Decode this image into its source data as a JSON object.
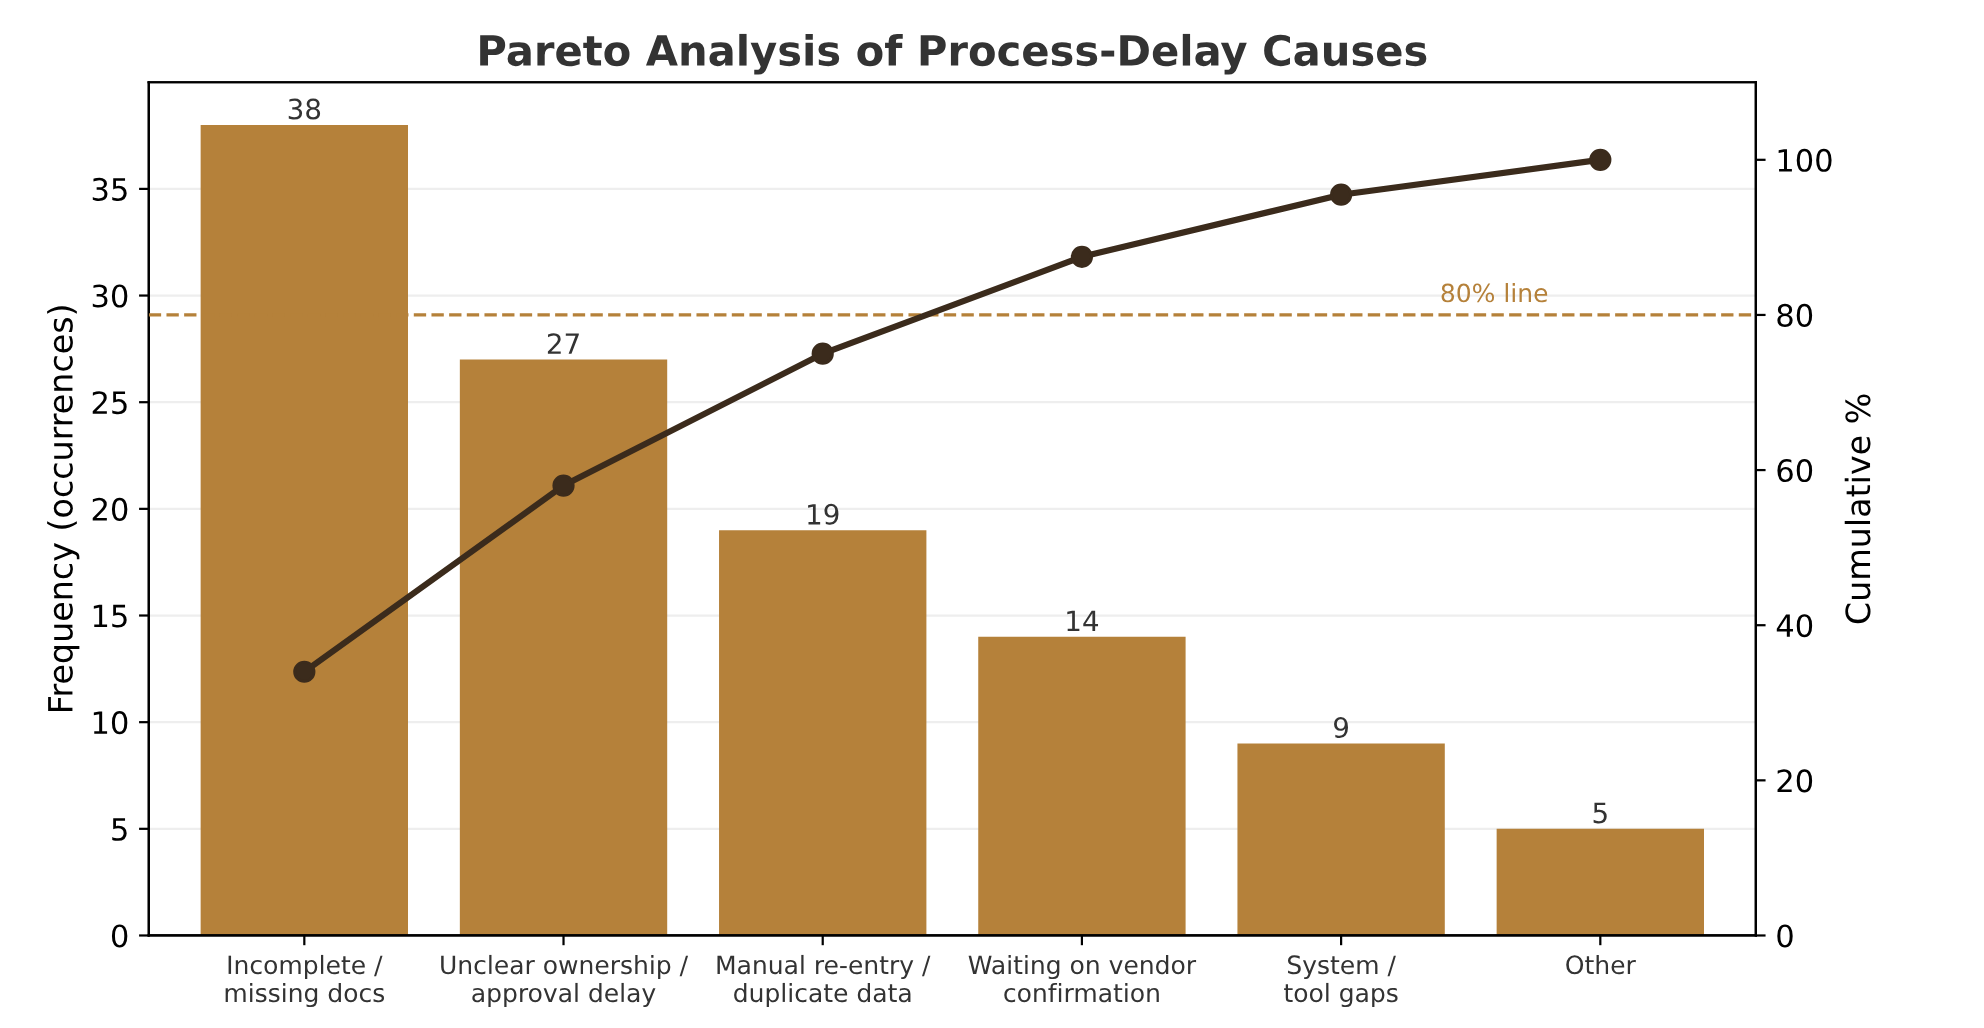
{
  "chart_data": {
    "type": "bar",
    "title": "Pareto Analysis of Process-Delay Causes",
    "ylabel": "Frequency (occurrences)",
    "y2label": "Cumulative %",
    "categories": [
      "Incomplete /\nmissing docs",
      "Unclear ownership /\napproval delay",
      "Manual re-entry /\nduplicate data",
      "Waiting on vendor\nconfirmation",
      "System /\ntool gaps",
      "Other"
    ],
    "series": [
      {
        "color": "#b5813a",
        "values": [
          38,
          27,
          19,
          14,
          9,
          5
        ],
        "value_labels": [
          "38",
          "27",
          "19",
          "14",
          "9",
          "5"
        ]
      },
      {
        "type": "line",
        "axis": "y2",
        "color": "#3b2b1c",
        "marker": "circle",
        "line_style": "solid",
        "values": [
          34,
          58,
          75,
          87.5,
          95.5,
          100
        ]
      }
    ],
    "ylim": [
      0,
      40
    ],
    "yticks": [
      0,
      5,
      10,
      15,
      20,
      25,
      30,
      35
    ],
    "y2lim": [
      0,
      110
    ],
    "y2ticks": [
      0,
      20,
      40,
      60,
      80,
      100
    ],
    "ref_lines": [
      {
        "axis": "y2",
        "value": 80,
        "label": "80% line",
        "color": "#b5813a",
        "line_style": "dashed"
      }
    ],
    "grid": "y",
    "legend": false
  }
}
